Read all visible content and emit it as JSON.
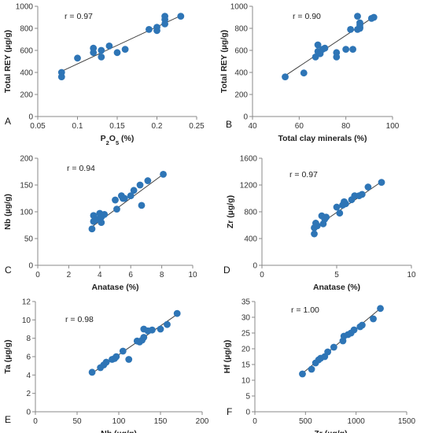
{
  "colors": {
    "marker": "#2E75B6",
    "axis": "#888888",
    "fit": "#404040"
  },
  "chart_data": [
    {
      "type": "scatter",
      "panel": "A",
      "xlabel": "P2O5 (%)",
      "ylabel": "Total REY (µg/g)",
      "annotation": "r = 0.97",
      "xlim": [
        0.05,
        0.25
      ],
      "ylim": [
        0,
        1000
      ],
      "xticks": [
        0.05,
        0.1,
        0.15,
        0.2,
        0.25
      ],
      "xtick_labels": [
        "0.05",
        "0.1",
        "0.15",
        "0.2",
        "0.25"
      ],
      "yticks": [
        0,
        200,
        400,
        600,
        800,
        1000
      ],
      "ytick_labels": [
        "0",
        "200",
        "400",
        "600",
        "800",
        "1000"
      ],
      "fit": [
        [
          0.08,
          410
        ],
        [
          0.23,
          915
        ]
      ],
      "x": [
        0.08,
        0.08,
        0.1,
        0.12,
        0.12,
        0.13,
        0.13,
        0.14,
        0.15,
        0.16,
        0.19,
        0.2,
        0.2,
        0.21,
        0.21,
        0.21,
        0.23
      ],
      "y": [
        400,
        360,
        530,
        620,
        580,
        600,
        540,
        640,
        580,
        610,
        790,
        810,
        780,
        840,
        880,
        910,
        910
      ]
    },
    {
      "type": "scatter",
      "panel": "B",
      "xlabel": "Total clay minerals (%)",
      "ylabel": "Total REY (µg/g)",
      "annotation": "r = 0.90",
      "xlim": [
        40,
        100
      ],
      "ylim": [
        0,
        1000
      ],
      "xticks": [
        40,
        60,
        80,
        100
      ],
      "xtick_labels": [
        "40",
        "60",
        "80",
        "100"
      ],
      "yticks": [
        0,
        200,
        400,
        600,
        800,
        1000
      ],
      "ytick_labels": [
        "0",
        "200",
        "400",
        "600",
        "800",
        "1000"
      ],
      "fit": [
        [
          54,
          370
        ],
        [
          92,
          905
        ]
      ],
      "x": [
        54,
        62,
        67,
        68,
        68,
        69,
        70,
        71,
        76,
        76,
        80,
        82,
        83,
        85,
        85,
        86,
        86,
        86,
        86,
        91,
        92
      ],
      "y": [
        360,
        395,
        540,
        590,
        650,
        570,
        610,
        620,
        580,
        540,
        610,
        790,
        610,
        790,
        910,
        850,
        800,
        810,
        830,
        890,
        900
      ]
    },
    {
      "type": "scatter",
      "panel": "C",
      "xlabel": "Anatase (%)",
      "ylabel": "Nb (µg/g)",
      "annotation": "r = 0.94",
      "xlim": [
        0,
        10
      ],
      "ylim": [
        0,
        200
      ],
      "xticks": [
        0,
        2,
        4,
        6,
        8,
        10
      ],
      "xtick_labels": [
        "0",
        "2",
        "4",
        "6",
        "8",
        "10"
      ],
      "yticks": [
        0,
        50,
        100,
        150,
        200
      ],
      "ytick_labels": [
        "0",
        "50",
        "100",
        "150",
        "200"
      ],
      "fit": [
        [
          3.5,
          72
        ],
        [
          8.0,
          168
        ]
      ],
      "x": [
        3.5,
        3.6,
        3.6,
        3.8,
        4.0,
        4.1,
        4.1,
        4.3,
        5.0,
        5.1,
        5.4,
        5.5,
        5.6,
        6.0,
        6.2,
        6.6,
        6.7,
        7.1,
        8.1
      ],
      "y": [
        68,
        93,
        82,
        86,
        97,
        90,
        80,
        95,
        122,
        105,
        130,
        125,
        125,
        130,
        140,
        150,
        112,
        158,
        170
      ]
    },
    {
      "type": "scatter",
      "panel": "D",
      "xlabel": "Anatase (%)",
      "ylabel": "Zr (µg/g)",
      "annotation": "r = 0.97",
      "xlim": [
        0,
        10
      ],
      "ylim": [
        0,
        1600
      ],
      "xticks": [
        0,
        5,
        10
      ],
      "xtick_labels": [
        "0",
        "5",
        "10"
      ],
      "yticks": [
        0,
        400,
        800,
        1200,
        1600
      ],
      "ytick_labels": [
        "0",
        "400",
        "800",
        "1200",
        "1600"
      ],
      "fit": [
        [
          3.5,
          560
        ],
        [
          8.0,
          1250
        ]
      ],
      "x": [
        3.5,
        3.5,
        3.6,
        3.7,
        4.0,
        4.1,
        4.2,
        4.3,
        5.0,
        5.2,
        5.4,
        5.5,
        5.6,
        6.0,
        6.2,
        6.5,
        6.7,
        7.1,
        8.0
      ],
      "y": [
        560,
        470,
        630,
        590,
        740,
        620,
        690,
        720,
        870,
        780,
        900,
        950,
        920,
        980,
        1040,
        1040,
        1060,
        1170,
        1240
      ]
    },
    {
      "type": "scatter",
      "panel": "E",
      "xlabel": "Nb (µg/g)",
      "ylabel": "Ta (µg/g)",
      "annotation": "r = 0.98",
      "xlim": [
        0,
        200
      ],
      "ylim": [
        0,
        12
      ],
      "xticks": [
        0,
        50,
        100,
        150,
        200
      ],
      "xtick_labels": [
        "0",
        "50",
        "100",
        "150",
        "200"
      ],
      "yticks": [
        0,
        2,
        4,
        6,
        8,
        10,
        12
      ],
      "ytick_labels": [
        "0",
        "2",
        "4",
        "6",
        "8",
        "10",
        "12"
      ],
      "fit": [
        [
          68,
          4.2
        ],
        [
          170,
          10.6
        ]
      ],
      "x": [
        68,
        78,
        82,
        85,
        92,
        95,
        97,
        105,
        112,
        122,
        125,
        128,
        130,
        130,
        135,
        140,
        150,
        158,
        170
      ],
      "y": [
        4.3,
        4.8,
        5.1,
        5.4,
        5.7,
        5.8,
        6.0,
        6.6,
        5.7,
        7.7,
        7.6,
        7.8,
        9.0,
        8.1,
        8.8,
        8.9,
        9.0,
        9.5,
        10.7
      ]
    },
    {
      "type": "scatter",
      "panel": "F",
      "xlabel": "Zr (µg/g)",
      "ylabel": "Hf (µg/g)",
      "annotation": "r = 1.00",
      "xlim": [
        0,
        1500
      ],
      "ylim": [
        0,
        35
      ],
      "xticks": [
        0,
        500,
        1000,
        1500
      ],
      "xtick_labels": [
        "0",
        "500",
        "1000",
        "1500"
      ],
      "yticks": [
        0,
        5,
        10,
        15,
        20,
        25,
        30,
        35
      ],
      "ytick_labels": [
        "0",
        "5",
        "10",
        "15",
        "20",
        "25",
        "30",
        "35"
      ],
      "fit": [
        [
          470,
          12.2
        ],
        [
          1240,
          32.8
        ]
      ],
      "x": [
        470,
        560,
        600,
        630,
        650,
        690,
        720,
        780,
        870,
        880,
        920,
        950,
        980,
        1040,
        1060,
        1170,
        1240
      ],
      "y": [
        12,
        13.5,
        15.5,
        16.5,
        17,
        17.5,
        19,
        20.5,
        22.5,
        24,
        24.5,
        25,
        26,
        27,
        27.5,
        29.5,
        32.8
      ]
    }
  ]
}
